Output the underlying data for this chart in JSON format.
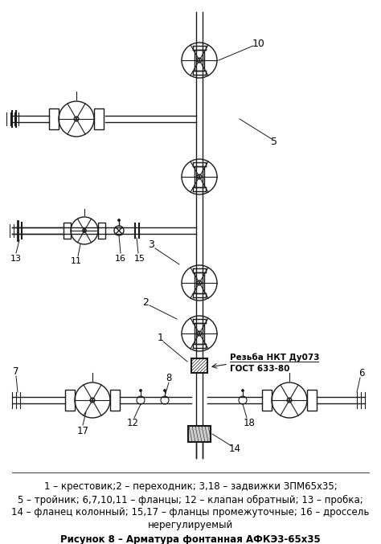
{
  "background_color": "#ffffff",
  "figure_width": 4.74,
  "figure_height": 6.77,
  "dpi": 100,
  "caption_line1": "1 – крестовик;2 – переходник; 3,18 – задвижки ЗПМ65х35;",
  "caption_line2": "5 – тройник; 6,7,10,11 – фланцы; 12 – клапан обратный; 13 – пробка;",
  "caption_line3": "14 – фланец колонный; 15,17 – фланцы промежуточные; 16 – дроссель",
  "caption_line4": "нерегулируемый",
  "figure_caption": "Рисунок 8 – Арматура фонтанная АФКЭ3-65х35",
  "rezba_line1": "Резьба НКТ Ду073",
  "rezba_line2": "ГОСТ 633-80",
  "line_color": "#1a1a1a",
  "label_color": "#000000"
}
